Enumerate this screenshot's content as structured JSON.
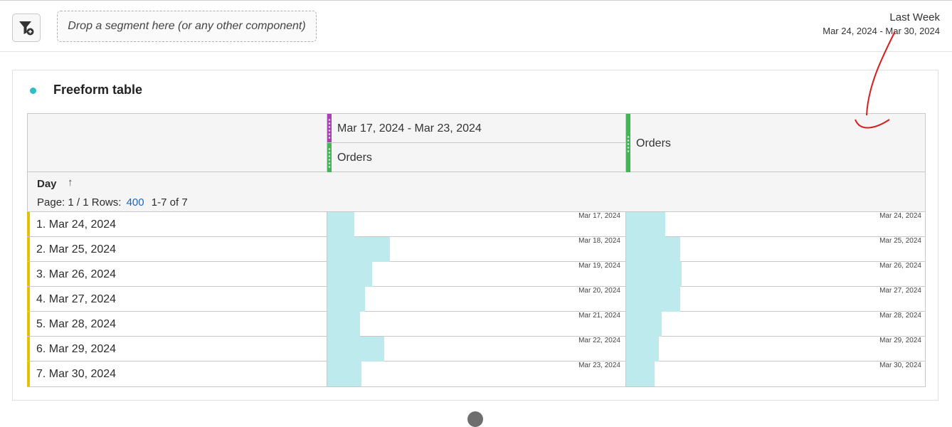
{
  "toolbar": {
    "segment_drop_placeholder": "Drop a segment here (or any other component)"
  },
  "date_range": {
    "label": "Last Week",
    "range": "Mar 24, 2024 - Mar 30, 2024"
  },
  "panel": {
    "title": "Freeform table",
    "accent_color": "#2ebdc4"
  },
  "table": {
    "columns": [
      {
        "segment": "Mar 17, 2024 - Mar 23, 2024",
        "metric": "Orders",
        "segment_color": "#a83fb5",
        "metric_color": "#44b556"
      },
      {
        "metric": "Orders",
        "metric_color": "#44b556"
      }
    ],
    "dimension": "Day",
    "pagination": {
      "page_label": "Page: 1 / 1",
      "rows_label": "Rows:",
      "rows_value": "400",
      "range": "1-7 of 7"
    },
    "rows": [
      {
        "label": "1.  Mar 24, 2024",
        "c1_date": "Mar 17, 2024",
        "c1_fill": 0.09,
        "c2_date": "Mar 24, 2024",
        "c2_fill": 0.13
      },
      {
        "label": "2.  Mar 25, 2024",
        "c1_date": "Mar 18, 2024",
        "c1_fill": 0.21,
        "c2_date": "Mar 25, 2024",
        "c2_fill": 0.18
      },
      {
        "label": "3.  Mar 26, 2024",
        "c1_date": "Mar 19, 2024",
        "c1_fill": 0.15,
        "c2_date": "Mar 26, 2024",
        "c2_fill": 0.185
      },
      {
        "label": "4.  Mar 27, 2024",
        "c1_date": "Mar 20, 2024",
        "c1_fill": 0.125,
        "c2_date": "Mar 27, 2024",
        "c2_fill": 0.18
      },
      {
        "label": "5.  Mar 28, 2024",
        "c1_date": "Mar 21, 2024",
        "c1_fill": 0.11,
        "c2_date": "Mar 28, 2024",
        "c2_fill": 0.12
      },
      {
        "label": "6.  Mar 29, 2024",
        "c1_date": "Mar 22, 2024",
        "c1_fill": 0.19,
        "c2_date": "Mar 29, 2024",
        "c2_fill": 0.11
      },
      {
        "label": "7.  Mar 30, 2024",
        "c1_date": "Mar 23, 2024",
        "c1_fill": 0.115,
        "c2_date": "Mar 30, 2024",
        "c2_fill": 0.095
      }
    ]
  },
  "annotation": {
    "color": "#d42020"
  }
}
